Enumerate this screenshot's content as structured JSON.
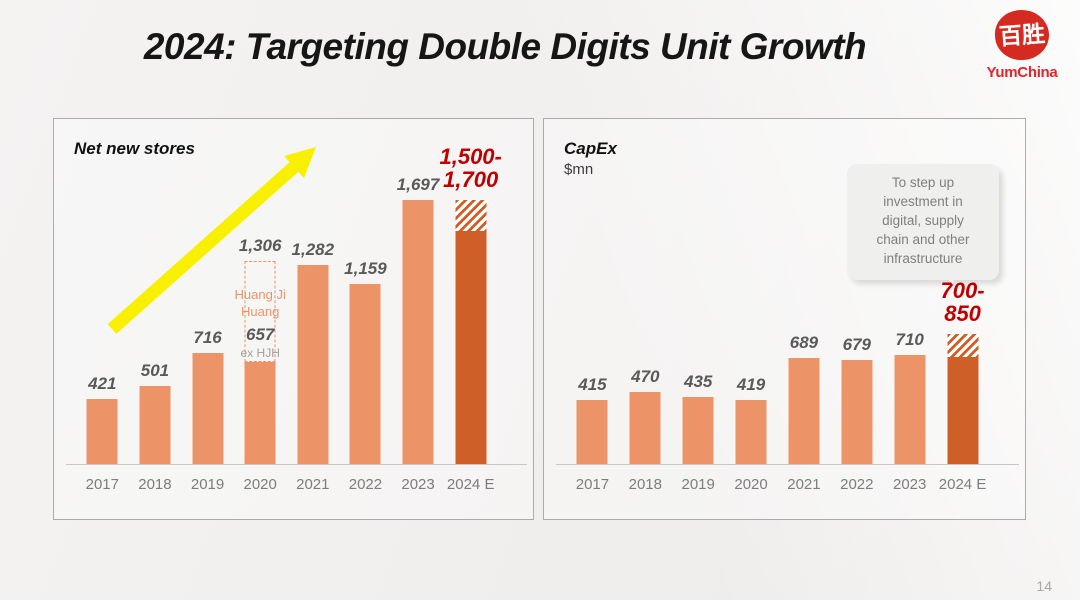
{
  "slide": {
    "title": "2024: Targeting Double Digits Unit Growth",
    "page_number": "14"
  },
  "logo": {
    "seal_text": "百胜",
    "brand": "YumChina"
  },
  "colors": {
    "bar_light": "#EC9468",
    "bar_dark": "#CE5F28",
    "accent_red": "#C00000",
    "value_gray": "#595959",
    "year_gray": "#7D7D7D",
    "arrow_yellow": "#F9F000",
    "huangji_orange": "#E9946B",
    "callout_bg": "#EFEFEE",
    "callout_text": "#7F7F7F",
    "logo_red": "#D42A22",
    "brand_red": "#E4232B"
  },
  "chart_data": [
    {
      "type": "bar",
      "name": "net-new-stores",
      "title": "Net new stores",
      "subtitle": "",
      "categories": [
        "2017",
        "2018",
        "2019",
        "2020",
        "2021",
        "2022",
        "2023",
        "2024 E"
      ],
      "bars": [
        {
          "value": 421,
          "label": "421"
        },
        {
          "value": 501,
          "label": "501"
        },
        {
          "value": 716,
          "label": "716"
        },
        {
          "value": 657,
          "label": "657",
          "sub_label": "ex HJH",
          "dashed_overlay": {
            "value": 1306,
            "label": "1,306",
            "text": "Huang Ji\nHuang"
          }
        },
        {
          "value": 1282,
          "label": "1,282"
        },
        {
          "value": 1159,
          "label": "1,159"
        },
        {
          "value": 1697,
          "label": "1,697"
        },
        {
          "value": 1500,
          "estimate": true,
          "hatch_to": 1700,
          "range_label": "1,500-\n1,700"
        }
      ],
      "ylim": [
        0,
        1750
      ],
      "grid": false,
      "legend": "none",
      "trend_arrow": true
    },
    {
      "type": "bar",
      "name": "capex",
      "title": "CapEx",
      "subtitle": "$mn",
      "categories": [
        "2017",
        "2018",
        "2019",
        "2020",
        "2021",
        "2022",
        "2023",
        "2024 E"
      ],
      "bars": [
        {
          "value": 415,
          "label": "415"
        },
        {
          "value": 470,
          "label": "470"
        },
        {
          "value": 435,
          "label": "435"
        },
        {
          "value": 419,
          "label": "419"
        },
        {
          "value": 689,
          "label": "689"
        },
        {
          "value": 679,
          "label": "679"
        },
        {
          "value": 710,
          "label": "710"
        },
        {
          "value": 700,
          "estimate": true,
          "hatch_to": 850,
          "range_label": "700-\n850"
        }
      ],
      "ylim": [
        0,
        900
      ],
      "grid": false,
      "legend": "none",
      "callout": "To step up\ninvestment in\ndigital, supply\nchain and other\ninfrastructure"
    }
  ]
}
